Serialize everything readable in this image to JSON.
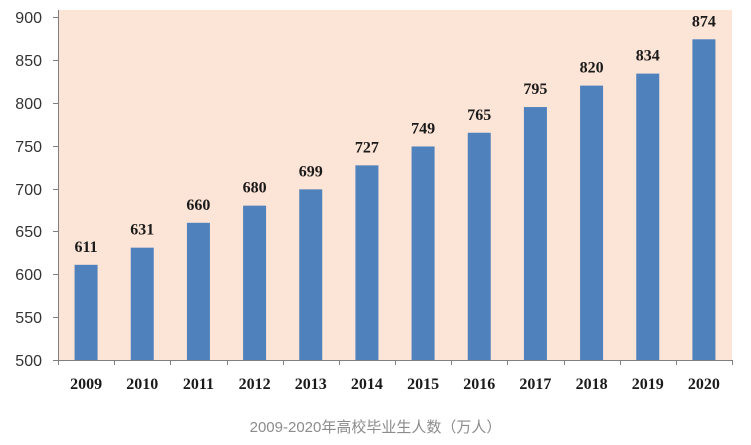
{
  "caption": "2009-2020年高校毕业生人数（万人）",
  "colors": {
    "plot_background": "#FCE4D6",
    "bar": "#4F81BD",
    "axis": "#7F7F7F",
    "caption_text": "#8C8C8C"
  },
  "chart_data": {
    "type": "bar",
    "categories": [
      "2009",
      "2010",
      "2011",
      "2012",
      "2013",
      "2014",
      "2015",
      "2016",
      "2017",
      "2018",
      "2019",
      "2020"
    ],
    "values": [
      611,
      631,
      660,
      680,
      699,
      727,
      749,
      765,
      795,
      820,
      834,
      874
    ],
    "ylim": [
      500,
      900
    ],
    "yticks": [
      500,
      550,
      600,
      650,
      700,
      750,
      800,
      850,
      900
    ],
    "grid": false,
    "data_labels": true
  }
}
